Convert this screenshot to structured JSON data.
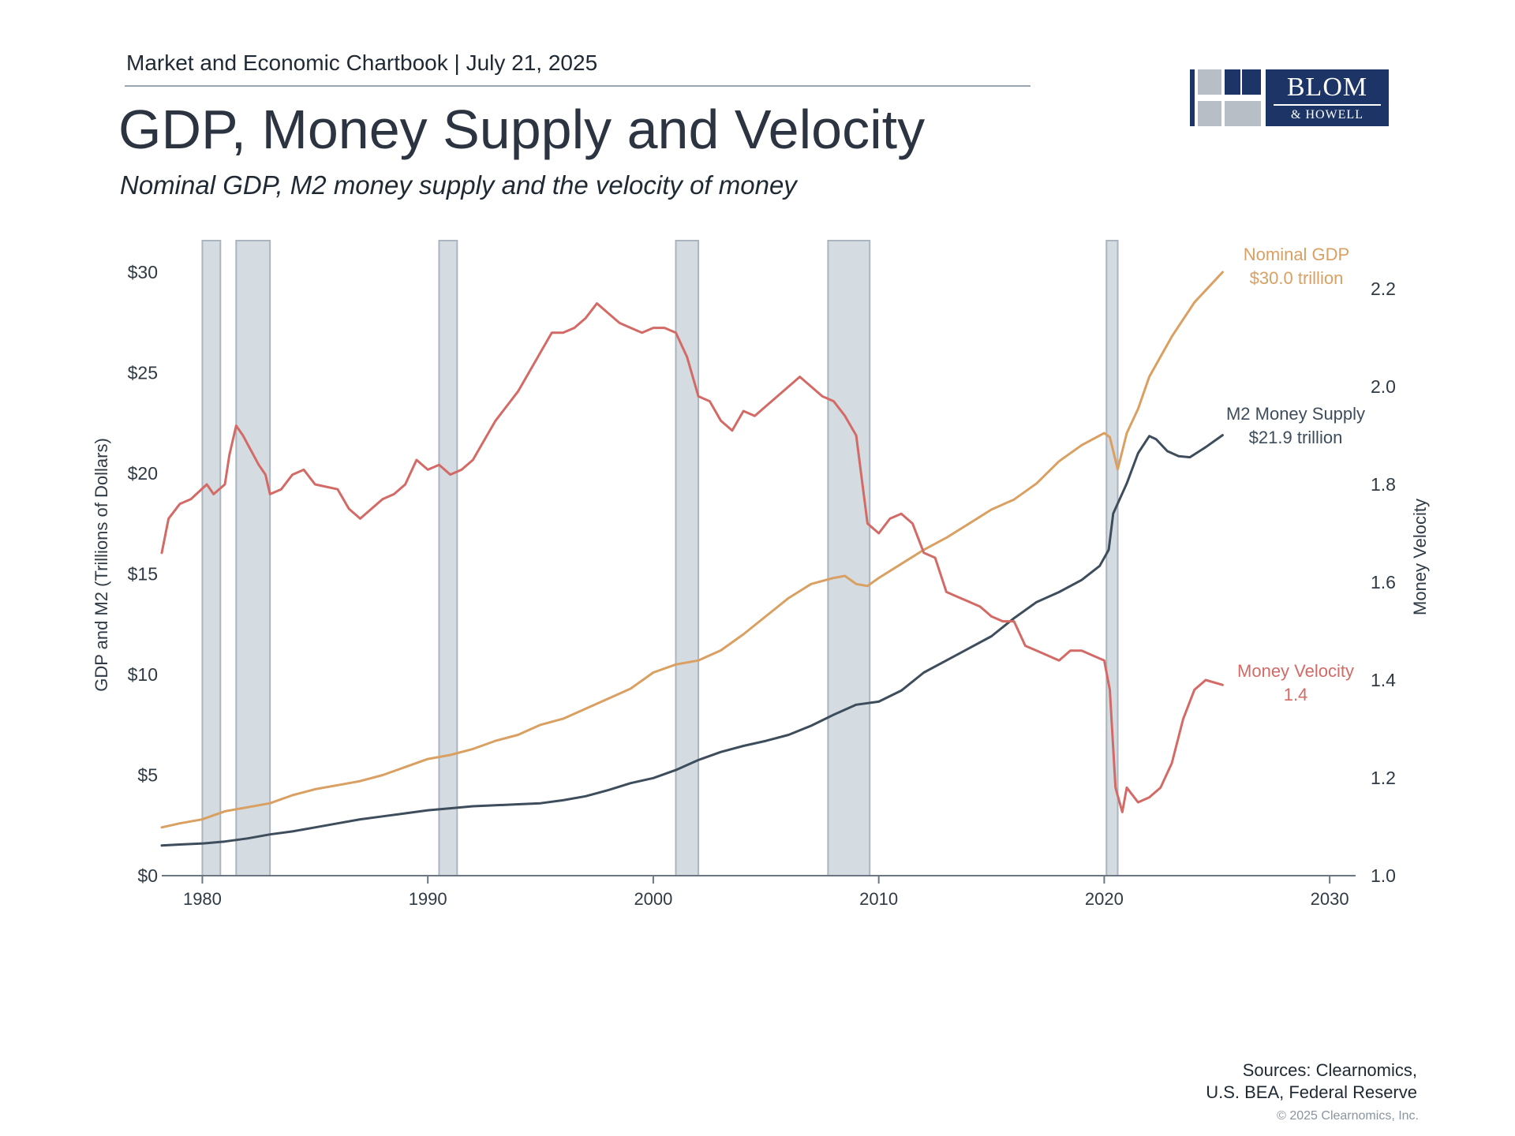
{
  "header": {
    "kicker": "Market and Economic Chartbook | July 21, 2025",
    "title": "GDP, Money Supply and Velocity",
    "subtitle": "Nominal GDP, M2 money supply and the velocity of money"
  },
  "logo": {
    "name": "BLOM",
    "sub": "& HOWELL",
    "brand_color": "#1c3566"
  },
  "footer": {
    "sources_line1": "Sources: Clearnomics,",
    "sources_line2": "U.S. BEA, Federal Reserve",
    "copyright": "© 2025 Clearnomics, Inc."
  },
  "chart_data": {
    "type": "line",
    "title": "GDP, Money Supply and Velocity",
    "ylabel": "GDP and M2 (Trillions of Dollars)",
    "y2label": "Money Velocity",
    "xlim": [
      1978.2,
      2031.5
    ],
    "ylim": [
      0,
      30
    ],
    "y2lim": [
      1.0,
      2.2
    ],
    "xticks": [
      1980,
      1990,
      2000,
      2010,
      2020,
      2030
    ],
    "yticks": [
      {
        "v": 0,
        "label": "$0"
      },
      {
        "v": 5,
        "label": "$5"
      },
      {
        "v": 10,
        "label": "$10"
      },
      {
        "v": 15,
        "label": "$15"
      },
      {
        "v": 20,
        "label": "$20"
      },
      {
        "v": 25,
        "label": "$25"
      },
      {
        "v": 30,
        "label": "$30"
      }
    ],
    "y2ticks": [
      {
        "v": 1.0,
        "label": "1.0"
      },
      {
        "v": 1.2,
        "label": "1.2"
      },
      {
        "v": 1.4,
        "label": "1.4"
      },
      {
        "v": 1.6,
        "label": "1.6"
      },
      {
        "v": 1.8,
        "label": "1.8"
      },
      {
        "v": 2.0,
        "label": "2.0"
      },
      {
        "v": 2.2,
        "label": "2.2"
      }
    ],
    "recessions": [
      [
        1980.0,
        1980.8
      ],
      [
        1981.5,
        1983.0
      ],
      [
        1990.5,
        1991.3
      ],
      [
        2001.0,
        2002.0
      ],
      [
        2007.75,
        2009.6
      ],
      [
        2020.1,
        2020.6
      ]
    ],
    "grid": false,
    "legend": "end-of-line labels",
    "series": [
      {
        "name": "Nominal GDP",
        "label_line1": "Nominal GDP",
        "label_line2": "$30.0 trillion",
        "color": "#d9a062",
        "axis": "left",
        "x": [
          1978.2,
          1979,
          1980,
          1981,
          1982,
          1983,
          1984,
          1985,
          1986,
          1987,
          1988,
          1989,
          1990,
          1991,
          1992,
          1993,
          1994,
          1995,
          1996,
          1997,
          1998,
          1999,
          2000,
          2001,
          2002,
          2003,
          2004,
          2005,
          2006,
          2007,
          2008,
          2008.5,
          2009,
          2009.5,
          2010,
          2011,
          2012,
          2013,
          2014,
          2015,
          2016,
          2017,
          2018,
          2019,
          2020,
          2020.25,
          2020.6,
          2021,
          2021.5,
          2022,
          2023,
          2024,
          2025.25
        ],
        "values": [
          2.4,
          2.6,
          2.8,
          3.2,
          3.4,
          3.6,
          4.0,
          4.3,
          4.5,
          4.7,
          5.0,
          5.4,
          5.8,
          6.0,
          6.3,
          6.7,
          7.0,
          7.5,
          7.8,
          8.3,
          8.8,
          9.3,
          10.1,
          10.5,
          10.7,
          11.2,
          12.0,
          12.9,
          13.8,
          14.5,
          14.8,
          14.9,
          14.5,
          14.4,
          14.8,
          15.5,
          16.2,
          16.8,
          17.5,
          18.2,
          18.7,
          19.5,
          20.6,
          21.4,
          22.0,
          21.8,
          20.2,
          22.0,
          23.2,
          24.8,
          26.8,
          28.5,
          30.0
        ]
      },
      {
        "name": "M2 Money Supply",
        "label_line1": "M2 Money Supply",
        "label_line2": "$21.9 trillion",
        "color": "#3d4d5c",
        "axis": "left",
        "x": [
          1978.2,
          1979,
          1980,
          1981,
          1982,
          1983,
          1984,
          1985,
          1986,
          1987,
          1988,
          1989,
          1990,
          1991,
          1992,
          1993,
          1994,
          1995,
          1996,
          1997,
          1998,
          1999,
          2000,
          2001,
          2002,
          2003,
          2004,
          2005,
          2006,
          2007,
          2008,
          2009,
          2010,
          2011,
          2012,
          2013,
          2014,
          2015,
          2016,
          2017,
          2018,
          2019,
          2019.8,
          2020.2,
          2020.4,
          2021,
          2021.5,
          2022,
          2022.3,
          2022.8,
          2023.3,
          2023.8,
          2024.5,
          2025.25
        ],
        "values": [
          1.5,
          1.55,
          1.6,
          1.7,
          1.85,
          2.05,
          2.2,
          2.4,
          2.6,
          2.8,
          2.95,
          3.1,
          3.25,
          3.35,
          3.45,
          3.5,
          3.55,
          3.6,
          3.75,
          3.95,
          4.25,
          4.6,
          4.85,
          5.25,
          5.75,
          6.15,
          6.45,
          6.7,
          7.0,
          7.45,
          8.0,
          8.5,
          8.65,
          9.2,
          10.1,
          10.7,
          11.3,
          11.9,
          12.8,
          13.6,
          14.1,
          14.7,
          15.4,
          16.2,
          18.0,
          19.5,
          21.0,
          21.85,
          21.7,
          21.1,
          20.85,
          20.8,
          21.3,
          21.9
        ]
      },
      {
        "name": "Money Velocity",
        "label_line1": "Money Velocity",
        "label_line2": "1.4",
        "color": "#d36a66",
        "axis": "right",
        "x": [
          1978.2,
          1978.5,
          1979,
          1979.5,
          1980.2,
          1980.5,
          1981,
          1981.2,
          1981.5,
          1981.8,
          1982.5,
          1982.8,
          1983,
          1983.5,
          1984,
          1984.5,
          1985,
          1986,
          1986.5,
          1987,
          1987.5,
          1988,
          1988.5,
          1989,
          1989.5,
          1990,
          1990.5,
          1991,
          1991.5,
          1992,
          1993,
          1994,
          1995,
          1995.5,
          1996,
          1996.5,
          1997,
          1997.5,
          1998,
          1998.5,
          1999,
          1999.5,
          2000,
          2000.5,
          2001,
          2001.5,
          2002,
          2002.5,
          2003,
          2003.5,
          2004,
          2004.5,
          2005,
          2005.5,
          2006,
          2006.5,
          2007,
          2007.5,
          2008,
          2008.5,
          2009,
          2009.5,
          2010,
          2010.5,
          2011,
          2011.5,
          2012,
          2012.5,
          2013,
          2013.5,
          2014,
          2014.5,
          2015,
          2015.5,
          2016,
          2016.5,
          2017,
          2017.5,
          2018,
          2018.5,
          2019,
          2019.5,
          2020,
          2020.25,
          2020.5,
          2020.8,
          2021,
          2021.5,
          2022,
          2022.5,
          2023,
          2023.5,
          2024,
          2024.5,
          2025.25
        ],
        "values": [
          1.66,
          1.73,
          1.76,
          1.77,
          1.8,
          1.78,
          1.8,
          1.86,
          1.92,
          1.9,
          1.84,
          1.82,
          1.78,
          1.79,
          1.82,
          1.83,
          1.8,
          1.79,
          1.75,
          1.73,
          1.75,
          1.77,
          1.78,
          1.8,
          1.85,
          1.83,
          1.84,
          1.82,
          1.83,
          1.85,
          1.93,
          1.99,
          2.07,
          2.11,
          2.11,
          2.12,
          2.14,
          2.17,
          2.15,
          2.13,
          2.12,
          2.11,
          2.12,
          2.12,
          2.11,
          2.06,
          1.98,
          1.97,
          1.93,
          1.91,
          1.95,
          1.94,
          1.96,
          1.98,
          2.0,
          2.02,
          2.0,
          1.98,
          1.97,
          1.94,
          1.9,
          1.72,
          1.7,
          1.73,
          1.74,
          1.72,
          1.66,
          1.65,
          1.58,
          1.57,
          1.56,
          1.55,
          1.53,
          1.52,
          1.52,
          1.47,
          1.46,
          1.45,
          1.44,
          1.46,
          1.46,
          1.45,
          1.44,
          1.38,
          1.18,
          1.13,
          1.18,
          1.15,
          1.16,
          1.18,
          1.23,
          1.32,
          1.38,
          1.4,
          1.39
        ]
      }
    ]
  }
}
